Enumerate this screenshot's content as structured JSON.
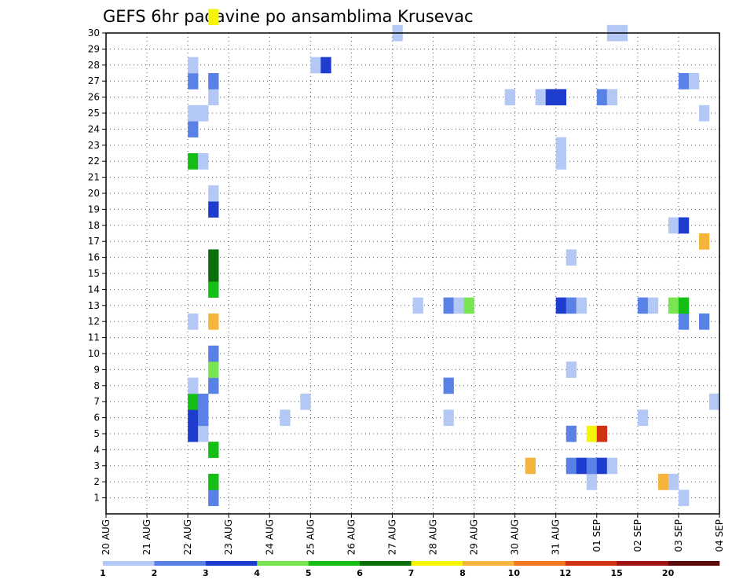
{
  "chart_data": {
    "type": "heatmap",
    "title": "GEFS 6hr padavine po ansamblima Krusevac",
    "xlabel": "",
    "ylabel": "",
    "x_ticks": [
      "20 AUG",
      "21 AUG",
      "22 AUG",
      "23 AUG",
      "24 AUG",
      "25 AUG",
      "26 AUG",
      "27 AUG",
      "28 AUG",
      "29 AUG",
      "30 AUG",
      "31 AUG",
      "01 SEP",
      "02 SEP",
      "03 SEP",
      "04 SEP"
    ],
    "y_ticks": [
      "1",
      "2",
      "3",
      "4",
      "5",
      "6",
      "7",
      "8",
      "9",
      "10",
      "11",
      "12",
      "13",
      "14",
      "15",
      "16",
      "17",
      "18",
      "19",
      "20",
      "21",
      "22",
      "23",
      "24",
      "25",
      "26",
      "27",
      "28",
      "29",
      "30"
    ],
    "ylim": [
      0,
      30
    ],
    "xlim_days": [
      0,
      15
    ],
    "steps_per_day": 4,
    "grid": true,
    "colorbar": {
      "labels": [
        "1",
        "2",
        "3",
        "4",
        "5",
        "6",
        "7",
        "8",
        "10",
        "12",
        "15",
        "20"
      ],
      "colors": [
        "#b4c8f5",
        "#5a82e6",
        "#1e3ccd",
        "#78e650",
        "#14be14",
        "#0a6e0a",
        "#f5f50a",
        "#f5b43c",
        "#f5781e",
        "#d23214",
        "#a01414",
        "#5a0a0a"
      ]
    },
    "cells": [
      {
        "step": 8,
        "member": 4,
        "c": 2
      },
      {
        "step": 8,
        "member": 5,
        "c": 2
      },
      {
        "step": 8,
        "member": 6,
        "c": 4
      },
      {
        "step": 8,
        "member": 7,
        "c": 0
      },
      {
        "step": 8,
        "member": 11,
        "c": 0
      },
      {
        "step": 8,
        "member": 21,
        "c": 4
      },
      {
        "step": 8,
        "member": 23,
        "c": 1
      },
      {
        "step": 8,
        "member": 24,
        "c": 0
      },
      {
        "step": 8,
        "member": 26,
        "c": 1
      },
      {
        "step": 8,
        "member": 27,
        "c": 0
      },
      {
        "step": 9,
        "member": 4,
        "c": 0
      },
      {
        "step": 9,
        "member": 5,
        "c": 1
      },
      {
        "step": 9,
        "member": 6,
        "c": 1
      },
      {
        "step": 9,
        "member": 21,
        "c": 0
      },
      {
        "step": 9,
        "member": 24,
        "c": 0
      },
      {
        "step": 10,
        "member": 0,
        "c": 1
      },
      {
        "step": 10,
        "member": 1,
        "c": 4
      },
      {
        "step": 10,
        "member": 3,
        "c": 4
      },
      {
        "step": 10,
        "member": 7,
        "c": 1
      },
      {
        "step": 10,
        "member": 8,
        "c": 3
      },
      {
        "step": 10,
        "member": 9,
        "c": 1
      },
      {
        "step": 10,
        "member": 11,
        "c": 7
      },
      {
        "step": 10,
        "member": 13,
        "c": 4
      },
      {
        "step": 10,
        "member": 14,
        "c": 5
      },
      {
        "step": 10,
        "member": 15,
        "c": 5
      },
      {
        "step": 10,
        "member": 18,
        "c": 2
      },
      {
        "step": 10,
        "member": 19,
        "c": 0
      },
      {
        "step": 10,
        "member": 25,
        "c": 0
      },
      {
        "step": 10,
        "member": 26,
        "c": 1
      },
      {
        "step": 10,
        "member": 30,
        "c": 6
      },
      {
        "step": 17,
        "member": 5,
        "c": 0
      },
      {
        "step": 19,
        "member": 6,
        "c": 0
      },
      {
        "step": 20,
        "member": 27,
        "c": 0
      },
      {
        "step": 21,
        "member": 27,
        "c": 2
      },
      {
        "step": 28,
        "member": 29,
        "c": 0
      },
      {
        "step": 30,
        "member": 12,
        "c": 0
      },
      {
        "step": 33,
        "member": 5,
        "c": 0
      },
      {
        "step": 33,
        "member": 7,
        "c": 1
      },
      {
        "step": 33,
        "member": 12,
        "c": 1
      },
      {
        "step": 34,
        "member": 12,
        "c": 0
      },
      {
        "step": 35,
        "member": 12,
        "c": 3
      },
      {
        "step": 39,
        "member": 25,
        "c": 0
      },
      {
        "step": 41,
        "member": 2,
        "c": 7
      },
      {
        "step": 42,
        "member": 25,
        "c": 0
      },
      {
        "step": 43,
        "member": 25,
        "c": 2
      },
      {
        "step": 44,
        "member": 12,
        "c": 2
      },
      {
        "step": 44,
        "member": 21,
        "c": 0
      },
      {
        "step": 44,
        "member": 22,
        "c": 0
      },
      {
        "step": 44,
        "member": 25,
        "c": 2
      },
      {
        "step": 45,
        "member": 2,
        "c": 1
      },
      {
        "step": 45,
        "member": 4,
        "c": 1
      },
      {
        "step": 45,
        "member": 8,
        "c": 0
      },
      {
        "step": 45,
        "member": 12,
        "c": 1
      },
      {
        "step": 45,
        "member": 15,
        "c": 0
      },
      {
        "step": 46,
        "member": 2,
        "c": 2
      },
      {
        "step": 46,
        "member": 12,
        "c": 0
      },
      {
        "step": 47,
        "member": 1,
        "c": 0
      },
      {
        "step": 47,
        "member": 2,
        "c": 1
      },
      {
        "step": 47,
        "member": 4,
        "c": 6
      },
      {
        "step": 48,
        "member": 2,
        "c": 2
      },
      {
        "step": 48,
        "member": 4,
        "c": 9
      },
      {
        "step": 48,
        "member": 25,
        "c": 1
      },
      {
        "step": 49,
        "member": 2,
        "c": 0
      },
      {
        "step": 49,
        "member": 25,
        "c": 0
      },
      {
        "step": 49,
        "member": 29,
        "c": 0
      },
      {
        "step": 50,
        "member": 29,
        "c": 0
      },
      {
        "step": 52,
        "member": 5,
        "c": 0
      },
      {
        "step": 52,
        "member": 12,
        "c": 1
      },
      {
        "step": 53,
        "member": 12,
        "c": 0
      },
      {
        "step": 54,
        "member": 1,
        "c": 7
      },
      {
        "step": 55,
        "member": 1,
        "c": 0
      },
      {
        "step": 55,
        "member": 12,
        "c": 3
      },
      {
        "step": 55,
        "member": 17,
        "c": 0
      },
      {
        "step": 56,
        "member": 0,
        "c": 0
      },
      {
        "step": 56,
        "member": 11,
        "c": 1
      },
      {
        "step": 56,
        "member": 12,
        "c": 4
      },
      {
        "step": 56,
        "member": 17,
        "c": 2
      },
      {
        "step": 56,
        "member": 26,
        "c": 1
      },
      {
        "step": 57,
        "member": 26,
        "c": 0
      },
      {
        "step": 58,
        "member": 11,
        "c": 1
      },
      {
        "step": 58,
        "member": 16,
        "c": 7
      },
      {
        "step": 58,
        "member": 24,
        "c": 0
      },
      {
        "step": 59,
        "member": 6,
        "c": 0
      }
    ]
  }
}
